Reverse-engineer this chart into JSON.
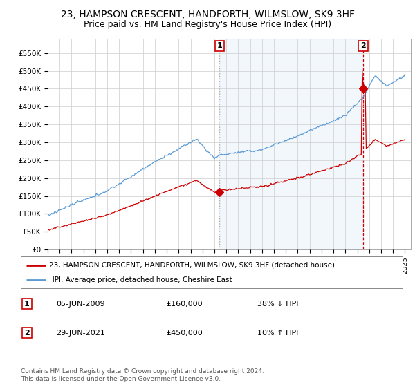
{
  "title": "23, HAMPSON CRESCENT, HANDFORTH, WILMSLOW, SK9 3HF",
  "subtitle": "Price paid vs. HM Land Registry's House Price Index (HPI)",
  "legend_line1": "23, HAMPSON CRESCENT, HANDFORTH, WILMSLOW, SK9 3HF (detached house)",
  "legend_line2": "HPI: Average price, detached house, Cheshire East",
  "annotation1_label": "1",
  "annotation1_date": "05-JUN-2009",
  "annotation1_price": "£160,000",
  "annotation1_hpi": "38% ↓ HPI",
  "annotation2_label": "2",
  "annotation2_date": "29-JUN-2021",
  "annotation2_price": "£450,000",
  "annotation2_hpi": "10% ↑ HPI",
  "footnote": "Contains HM Land Registry data © Crown copyright and database right 2024.\nThis data is licensed under the Open Government Licence v3.0.",
  "red_color": "#cc0000",
  "blue_color": "#5b9bd5",
  "blue_fill": "#ddeeff",
  "background_color": "#ffffff",
  "grid_color": "#cccccc",
  "title_fontsize": 10,
  "subtitle_fontsize": 9,
  "axis_fontsize": 7.5,
  "ylim_min": 0,
  "ylim_max": 590000,
  "t1_year": 2009.42,
  "t1_price": 160000,
  "t2_year": 2021.5,
  "t2_price": 450000
}
